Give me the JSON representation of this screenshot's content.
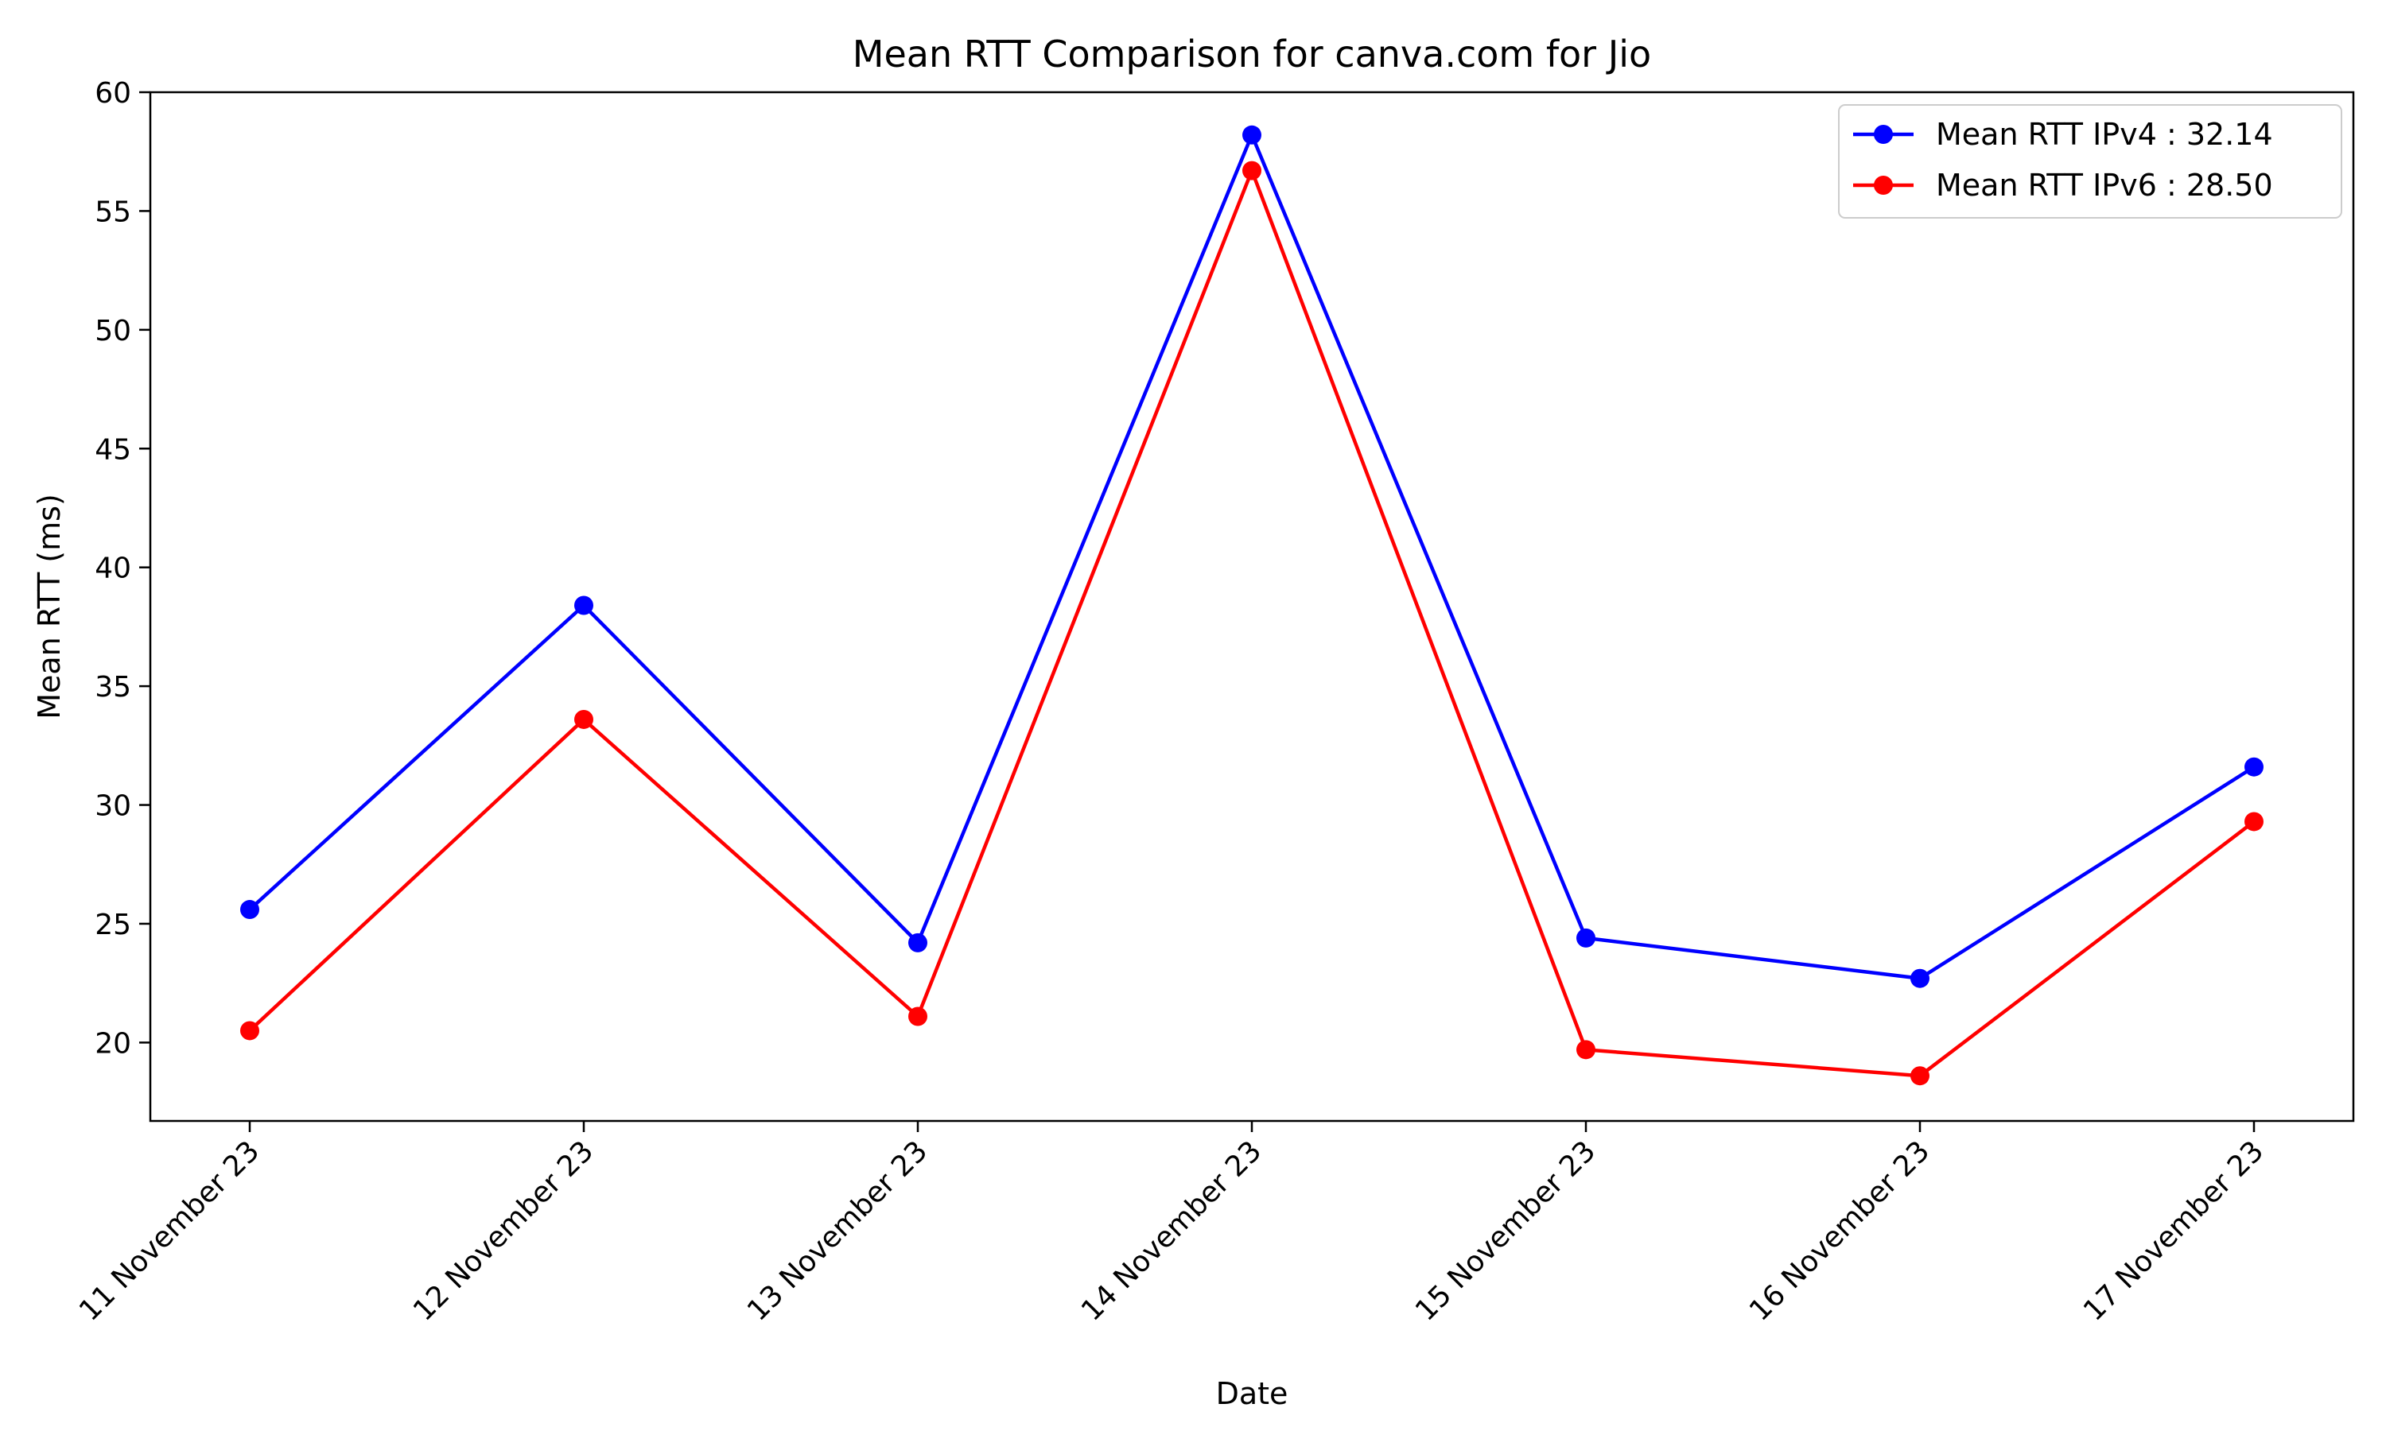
{
  "chart_data": {
    "type": "line",
    "title": "Mean RTT Comparison for canva.com for Jio",
    "xlabel": "Date",
    "ylabel": "Mean RTT (ms)",
    "categories": [
      "11 November 23",
      "12 November 23",
      "13 November 23",
      "14 November 23",
      "15 November 23",
      "16 November 23",
      "17 November 23"
    ],
    "ylim": [
      16.7,
      60
    ],
    "yticks": [
      20,
      25,
      30,
      35,
      40,
      45,
      50,
      55,
      60
    ],
    "grid": false,
    "legend_position": "top-right",
    "series": [
      {
        "name": "Mean RTT IPv4 : 32.14",
        "color": "#0000ff",
        "values": [
          25.6,
          38.4,
          24.2,
          58.2,
          24.4,
          22.7,
          31.6
        ]
      },
      {
        "name": "Mean RTT IPv6 : 28.50",
        "color": "#ff0000",
        "values": [
          20.5,
          33.6,
          21.1,
          56.7,
          19.7,
          18.6,
          29.3
        ]
      }
    ]
  }
}
